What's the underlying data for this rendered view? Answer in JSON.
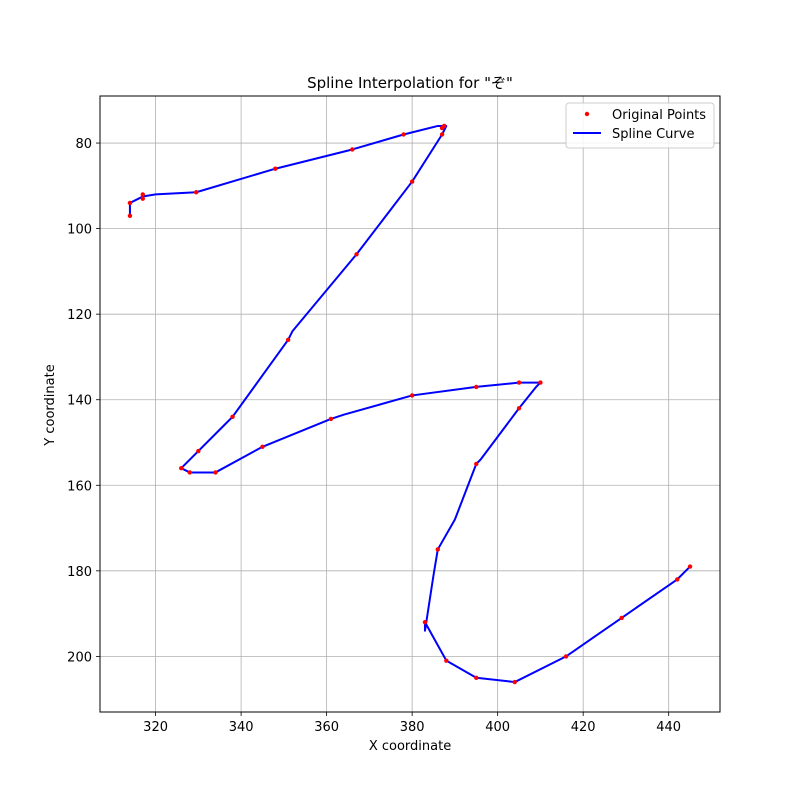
{
  "chart_data": {
    "type": "line",
    "title": "Spline Interpolation for \"ぞ\"",
    "xlabel": "X coordinate",
    "ylabel": "Y coordinate",
    "xlim": [
      307,
      452
    ],
    "ylim": [
      213,
      69
    ],
    "y_inverted": true,
    "grid": true,
    "legend_position": "top-right",
    "xticks": [
      320,
      340,
      360,
      380,
      400,
      420,
      440
    ],
    "yticks": [
      80,
      100,
      120,
      140,
      160,
      180,
      200
    ],
    "series": [
      {
        "name": "Original Points",
        "kind": "scatter",
        "color": "#ff0000",
        "points": [
          [
            314,
            97
          ],
          [
            314,
            94
          ],
          [
            317,
            93
          ],
          [
            317,
            92
          ],
          [
            329.5,
            91.5
          ],
          [
            348,
            86
          ],
          [
            366,
            81.5
          ],
          [
            378,
            78
          ],
          [
            387,
            76.5
          ],
          [
            387.5,
            76
          ],
          [
            387,
            78
          ],
          [
            380,
            89
          ],
          [
            367,
            106
          ],
          [
            351,
            126
          ],
          [
            338,
            144
          ],
          [
            330,
            152
          ],
          [
            326,
            156
          ],
          [
            328,
            157
          ],
          [
            334,
            157
          ],
          [
            345,
            151
          ],
          [
            361,
            144.5
          ],
          [
            380,
            139
          ],
          [
            395,
            137
          ],
          [
            405,
            136
          ],
          [
            410,
            136
          ],
          [
            405,
            142
          ],
          [
            395,
            155
          ],
          [
            386,
            175
          ],
          [
            383,
            192
          ],
          [
            388,
            201
          ],
          [
            395,
            205
          ],
          [
            404,
            206
          ],
          [
            416,
            200
          ],
          [
            429,
            191
          ],
          [
            442,
            182
          ],
          [
            445,
            179
          ]
        ]
      },
      {
        "name": "Spline Curve",
        "kind": "line",
        "color": "#0000ff",
        "points": [
          [
            314,
            97
          ],
          [
            314,
            94
          ],
          [
            316,
            93
          ],
          [
            317,
            92.5
          ],
          [
            320,
            92
          ],
          [
            329.5,
            91.5
          ],
          [
            348,
            86
          ],
          [
            366,
            81.5
          ],
          [
            378,
            78
          ],
          [
            386,
            76
          ],
          [
            388,
            76
          ],
          [
            387,
            78
          ],
          [
            380,
            89
          ],
          [
            367,
            106
          ],
          [
            352,
            124
          ],
          [
            351,
            126
          ],
          [
            338,
            144
          ],
          [
            336,
            146
          ],
          [
            330,
            152
          ],
          [
            326,
            156
          ],
          [
            328,
            157
          ],
          [
            334,
            157
          ],
          [
            345,
            151
          ],
          [
            361,
            144.5
          ],
          [
            364,
            143.5
          ],
          [
            380,
            139
          ],
          [
            395,
            137
          ],
          [
            405,
            136
          ],
          [
            410,
            136
          ],
          [
            409,
            137
          ],
          [
            405,
            142
          ],
          [
            396,
            154
          ],
          [
            395,
            155
          ],
          [
            390,
            168
          ],
          [
            386,
            175
          ],
          [
            385,
            181
          ],
          [
            383,
            194
          ],
          [
            383,
            192
          ],
          [
            388,
            201
          ],
          [
            395,
            205
          ],
          [
            404,
            206
          ],
          [
            416,
            200
          ],
          [
            429,
            191
          ],
          [
            442,
            182
          ],
          [
            445,
            179
          ]
        ]
      }
    ]
  }
}
